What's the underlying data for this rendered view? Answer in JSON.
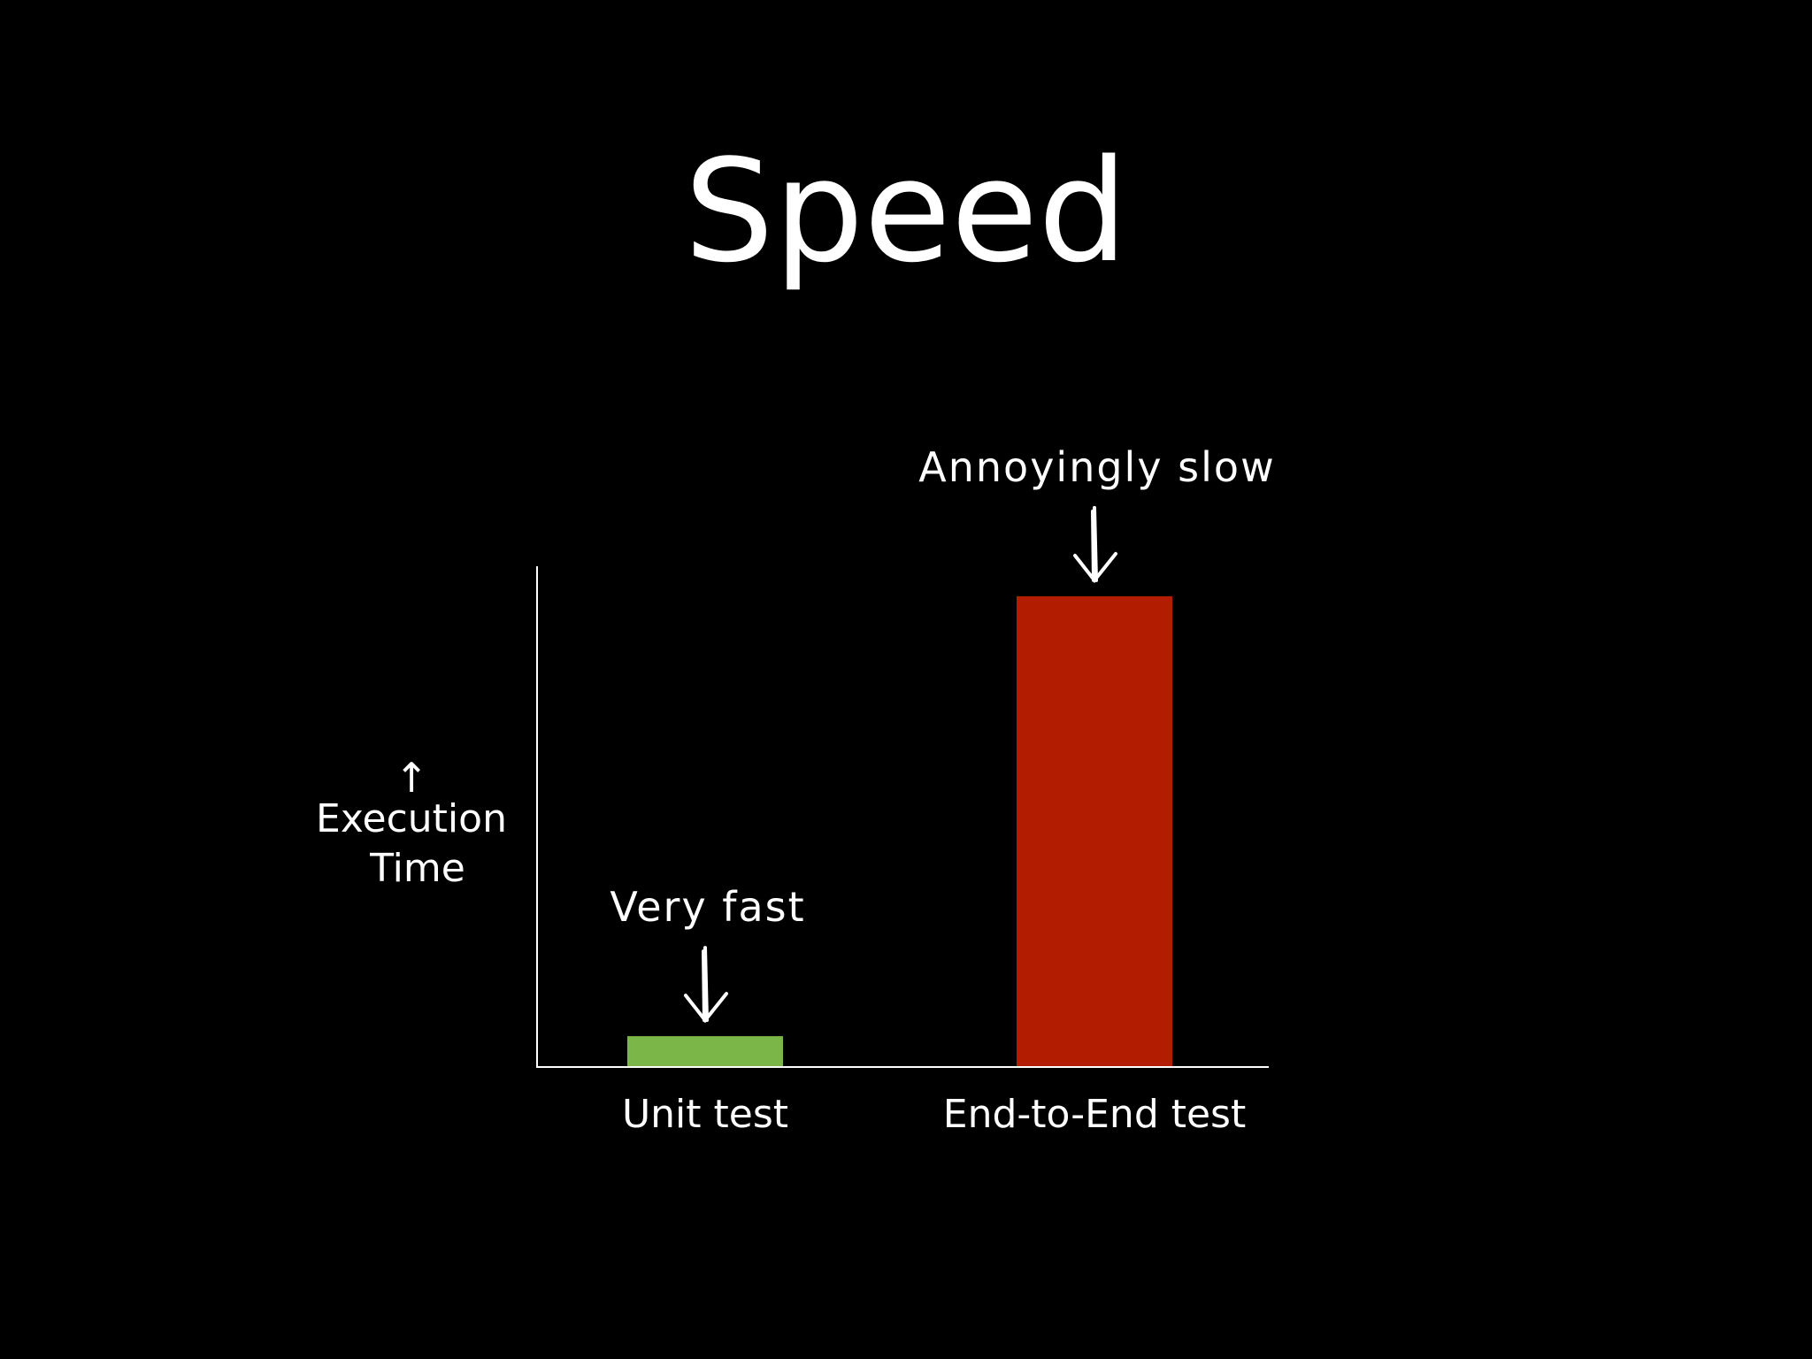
{
  "chart_data": {
    "type": "bar",
    "title": "Speed",
    "ylabel": "Execution Time",
    "categories": [
      "Unit test",
      "End-to-End test"
    ],
    "values": [
      6,
      94
    ],
    "colors": [
      "#7ab648",
      "#b21c00"
    ],
    "annotations": [
      "Very fast",
      "Annoyingly slow"
    ],
    "ylim": [
      0,
      100
    ]
  }
}
